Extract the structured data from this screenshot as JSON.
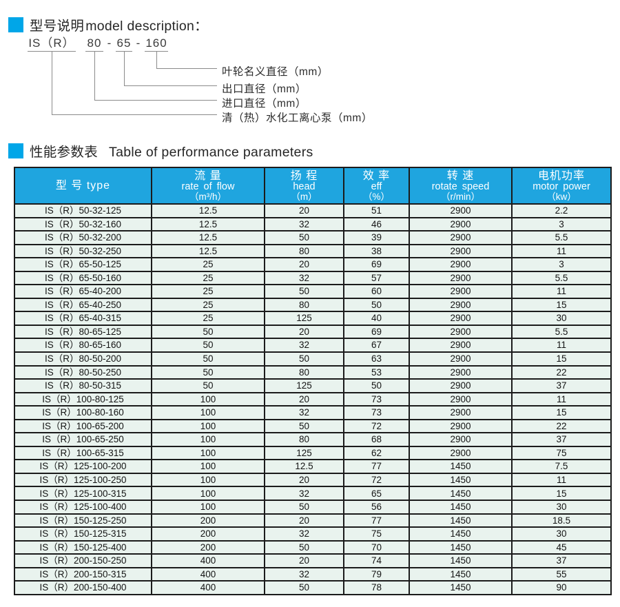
{
  "colors": {
    "accent": "#00a6e8",
    "table_header_bg": "#1fa5df",
    "row_bg": "#e9f3ee",
    "border": "#1b1b1b"
  },
  "section_model": {
    "title_zh": "型号说明",
    "title_en": "model description：",
    "model": {
      "series": "IS（R）",
      "inlet": "80",
      "dash1": "-",
      "outlet": "65",
      "dash2": "-",
      "impeller": "160"
    },
    "callouts": [
      "叶轮名义直径（mm）",
      "出口直径（mm）",
      "进口直径（mm）",
      "清（热）水化工离心泵（mm）"
    ]
  },
  "section_table": {
    "title_zh": "性能参数表",
    "title_en": "Table of performance parameters"
  },
  "table": {
    "col_keys": [
      "type",
      "flow",
      "head",
      "eff",
      "speed",
      "power"
    ],
    "columns": [
      {
        "lines": [
          "型 号 type"
        ]
      },
      {
        "lines": [
          "流 量",
          "rate of flow",
          "（m³/h）"
        ]
      },
      {
        "lines": [
          "扬 程",
          "head",
          "（m）"
        ]
      },
      {
        "lines": [
          "效 率",
          "eff",
          "（%）"
        ]
      },
      {
        "lines": [
          "转 速",
          "rotate speed",
          "（r/min）"
        ]
      },
      {
        "lines": [
          "电机功率",
          "motor power",
          "（kw）"
        ]
      }
    ],
    "rows": [
      [
        "IS（R）50-32-125",
        "12.5",
        "20",
        "51",
        "2900",
        "2.2"
      ],
      [
        "IS（R）50-32-160",
        "12.5",
        "32",
        "46",
        "2900",
        "3"
      ],
      [
        "IS（R）50-32-200",
        "12.5",
        "50",
        "39",
        "2900",
        "5.5"
      ],
      [
        "IS（R）50-32-250",
        "12.5",
        "80",
        "38",
        "2900",
        "11"
      ],
      [
        "IS（R）65-50-125",
        "25",
        "20",
        "69",
        "2900",
        "3"
      ],
      [
        "IS（R）65-50-160",
        "25",
        "32",
        "57",
        "2900",
        "5.5"
      ],
      [
        "IS（R）65-40-200",
        "25",
        "50",
        "60",
        "2900",
        "11"
      ],
      [
        "IS（R）65-40-250",
        "25",
        "80",
        "50",
        "2900",
        "15"
      ],
      [
        "IS（R）65-40-315",
        "25",
        "125",
        "40",
        "2900",
        "30"
      ],
      [
        "IS（R）80-65-125",
        "50",
        "20",
        "69",
        "2900",
        "5.5"
      ],
      [
        "IS（R）80-65-160",
        "50",
        "32",
        "67",
        "2900",
        "11"
      ],
      [
        "IS（R）80-50-200",
        "50",
        "50",
        "63",
        "2900",
        "15"
      ],
      [
        "IS（R）80-50-250",
        "50",
        "80",
        "53",
        "2900",
        "22"
      ],
      [
        "IS（R）80-50-315",
        "50",
        "125",
        "50",
        "2900",
        "37"
      ],
      [
        "IS（R）100-80-125",
        "100",
        "20",
        "73",
        "2900",
        "11"
      ],
      [
        "IS（R）100-80-160",
        "100",
        "32",
        "73",
        "2900",
        "15"
      ],
      [
        "IS（R）100-65-200",
        "100",
        "50",
        "72",
        "2900",
        "22"
      ],
      [
        "IS（R）100-65-250",
        "100",
        "80",
        "68",
        "2900",
        "37"
      ],
      [
        "IS（R）100-65-315",
        "100",
        "125",
        "62",
        "2900",
        "75"
      ],
      [
        "IS（R）125-100-200",
        "100",
        "12.5",
        "77",
        "1450",
        "7.5"
      ],
      [
        "IS（R）125-100-250",
        "100",
        "20",
        "72",
        "1450",
        "11"
      ],
      [
        "IS（R）125-100-315",
        "100",
        "32",
        "65",
        "1450",
        "15"
      ],
      [
        "IS（R）125-100-400",
        "100",
        "50",
        "56",
        "1450",
        "30"
      ],
      [
        "IS（R）150-125-250",
        "200",
        "20",
        "77",
        "1450",
        "18.5"
      ],
      [
        "IS（R）150-125-315",
        "200",
        "32",
        "75",
        "1450",
        "30"
      ],
      [
        "IS（R）150-125-400",
        "200",
        "50",
        "70",
        "1450",
        "45"
      ],
      [
        "IS（R）200-150-250",
        "400",
        "20",
        "74",
        "1450",
        "37"
      ],
      [
        "IS（R）200-150-315",
        "400",
        "32",
        "79",
        "1450",
        "55"
      ],
      [
        "IS（R）200-150-400",
        "400",
        "50",
        "78",
        "1450",
        "90"
      ]
    ]
  }
}
